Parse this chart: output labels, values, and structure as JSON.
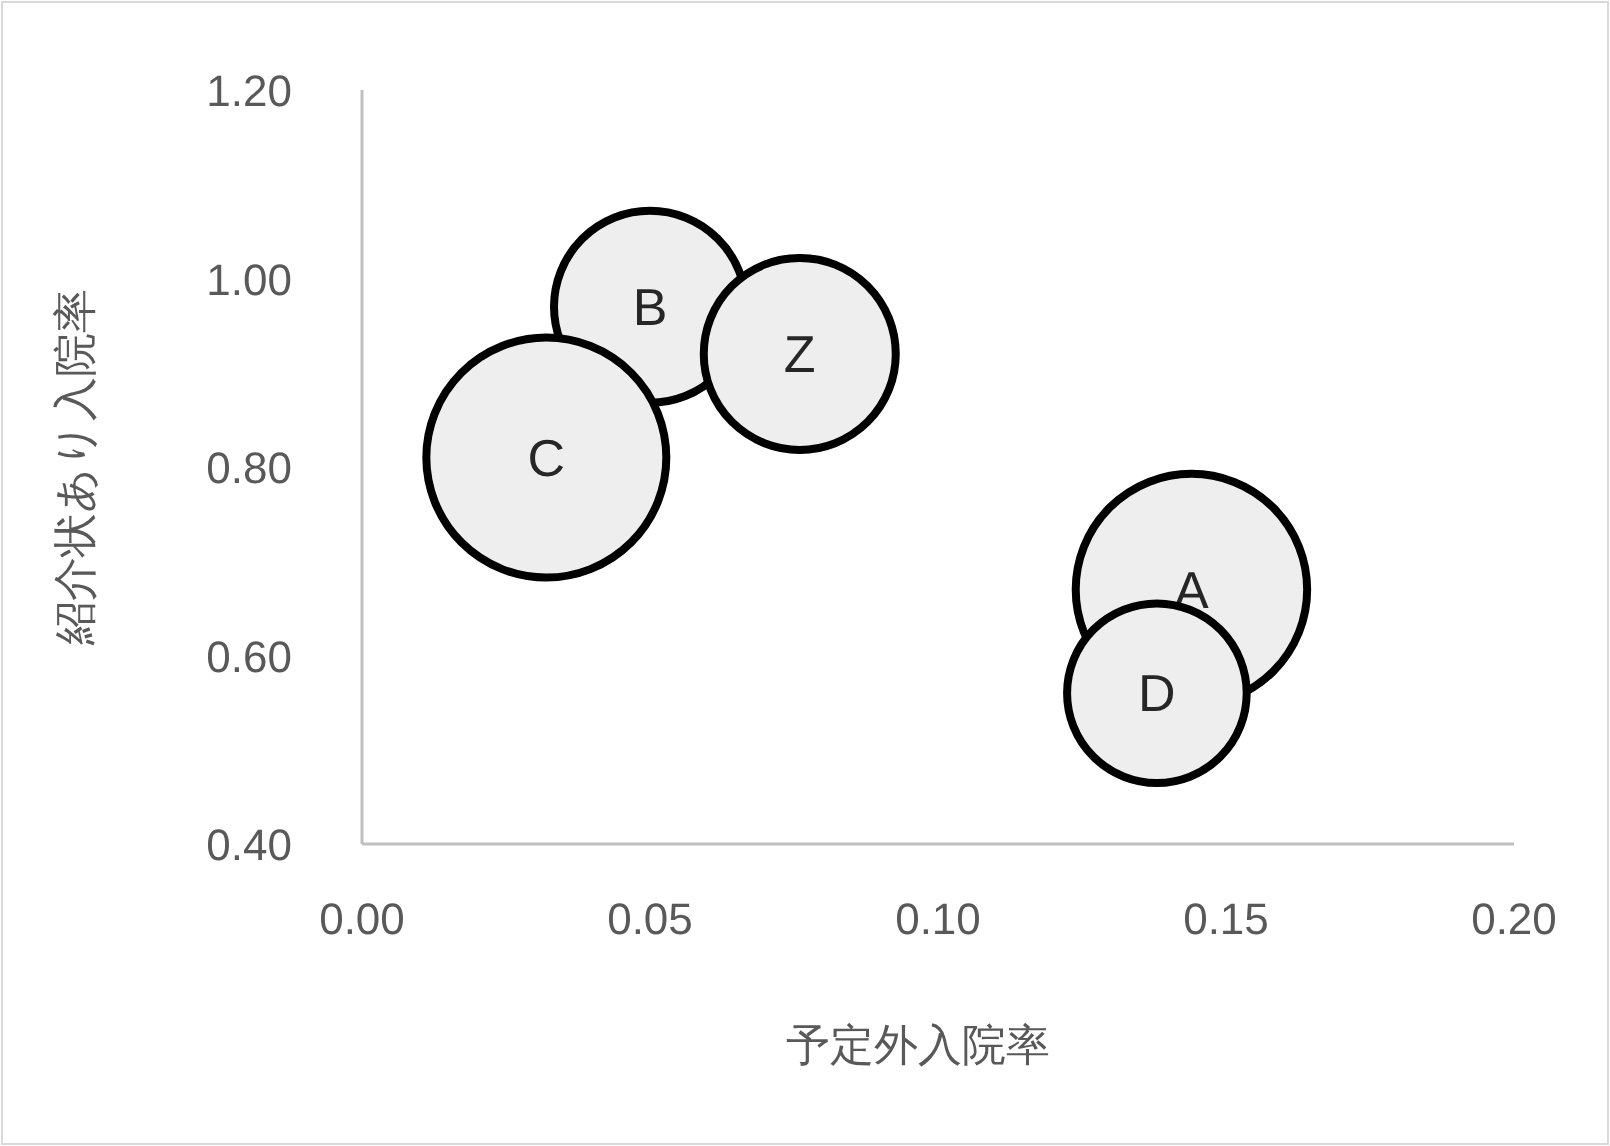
{
  "chart_data": {
    "type": "bubble",
    "xlabel": "予定外入院率",
    "ylabel": "紹介状あり入院率",
    "xlim": [
      0,
      0.2
    ],
    "ylim": [
      0.4,
      1.2
    ],
    "xticks": [
      {
        "value": 0,
        "label": "0.00"
      },
      {
        "value": 0.05,
        "label": "0.05"
      },
      {
        "value": 0.1,
        "label": "0.10"
      },
      {
        "value": 0.15,
        "label": "0.15"
      },
      {
        "value": 0.2,
        "label": "0.20"
      }
    ],
    "yticks": [
      {
        "value": 0.4,
        "label": "0.40"
      },
      {
        "value": 0.6,
        "label": "0.60"
      },
      {
        "value": 0.8,
        "label": "0.80"
      },
      {
        "value": 1.0,
        "label": "1.00"
      },
      {
        "value": 1.2,
        "label": "1.20"
      }
    ],
    "grid": false,
    "legend": false,
    "series": [
      {
        "name": "B",
        "color": "#eeeeee",
        "x": [
          0.05
        ],
        "values": [
          0.97
        ],
        "sizes": [
          0.64
        ]
      },
      {
        "name": "Z",
        "color": "#eeeeee",
        "x": [
          0.076
        ],
        "values": [
          0.92
        ],
        "sizes": [
          0.64
        ]
      },
      {
        "name": "C",
        "color": "#eeeeee",
        "x": [
          0.032
        ],
        "values": [
          0.81
        ],
        "sizes": [
          1
        ]
      },
      {
        "name": "A",
        "color": "#eeeeee",
        "x": [
          0.144
        ],
        "values": [
          0.67
        ],
        "sizes": [
          0.93
        ]
      },
      {
        "name": "D",
        "color": "#eeeeee",
        "x": [
          0.138
        ],
        "values": [
          0.56
        ],
        "sizes": [
          0.56
        ]
      }
    ]
  }
}
